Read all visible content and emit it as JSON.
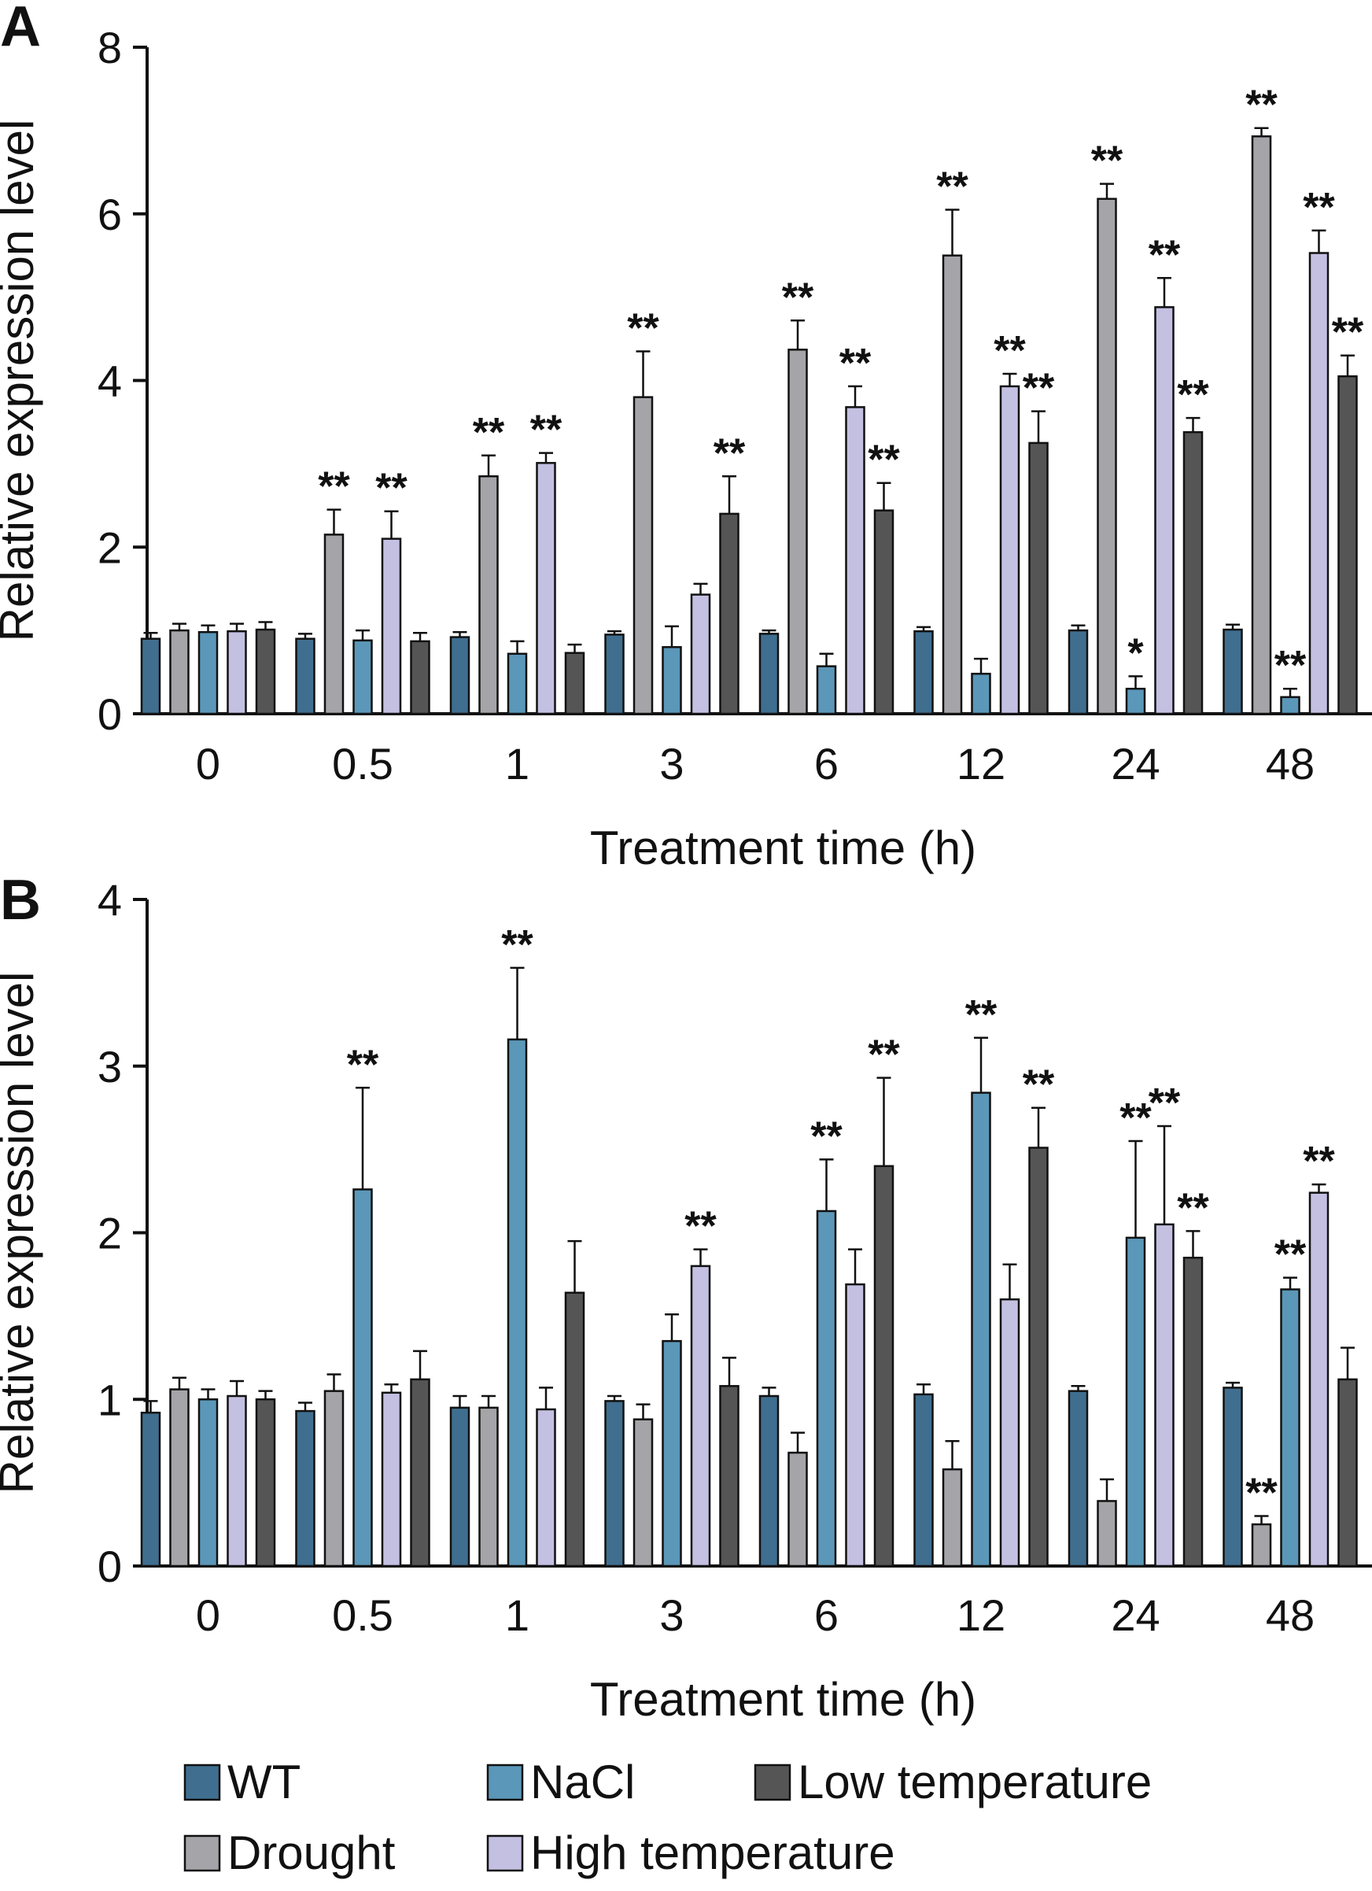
{
  "chart_data": [
    {
      "panel": "A",
      "type": "bar",
      "xlabel": "Treatment time (h)",
      "ylabel": "Relative expression level",
      "ylim": [
        0,
        8
      ],
      "yticks": [
        "0",
        "2",
        "4",
        "6",
        "8"
      ],
      "categories": [
        "0",
        "0.5",
        "1",
        "3",
        "6",
        "12",
        "24",
        "48"
      ],
      "series": [
        {
          "name": "WT",
          "values": [
            0.9,
            0.9,
            0.92,
            0.95,
            0.96,
            0.99,
            1.0,
            1.01
          ],
          "errors": [
            0.07,
            0.06,
            0.06,
            0.04,
            0.04,
            0.05,
            0.06,
            0.06
          ],
          "sig": [
            "",
            "",
            "",
            "",
            "",
            "",
            "",
            ""
          ]
        },
        {
          "name": "Drought",
          "values": [
            1.0,
            2.15,
            2.85,
            3.8,
            4.37,
            5.5,
            6.18,
            6.93
          ],
          "errors": [
            0.08,
            0.3,
            0.25,
            0.55,
            0.35,
            0.55,
            0.18,
            0.1
          ],
          "sig": [
            "",
            "**",
            "**",
            "**",
            "**",
            "**",
            "**",
            "**"
          ]
        },
        {
          "name": "NaCl",
          "values": [
            0.98,
            0.88,
            0.72,
            0.8,
            0.57,
            0.48,
            0.3,
            0.2
          ],
          "errors": [
            0.08,
            0.12,
            0.15,
            0.25,
            0.15,
            0.18,
            0.15,
            0.1
          ],
          "sig": [
            "",
            "",
            "",
            "",
            "",
            "",
            "*",
            "**"
          ]
        },
        {
          "name": "High temperature",
          "values": [
            0.99,
            2.1,
            3.01,
            1.43,
            3.68,
            3.93,
            4.88,
            5.53
          ],
          "errors": [
            0.09,
            0.33,
            0.12,
            0.13,
            0.25,
            0.15,
            0.35,
            0.27
          ],
          "sig": [
            "",
            "**",
            "**",
            "",
            "**",
            "**",
            "**",
            "**"
          ]
        },
        {
          "name": "Low temperature",
          "values": [
            1.01,
            0.87,
            0.73,
            2.4,
            2.44,
            3.25,
            3.38,
            4.05
          ],
          "errors": [
            0.09,
            0.1,
            0.1,
            0.45,
            0.33,
            0.38,
            0.17,
            0.25
          ],
          "sig": [
            "",
            "",
            "",
            "**",
            "**",
            "**",
            "**",
            "**"
          ]
        }
      ]
    },
    {
      "panel": "B",
      "type": "bar",
      "xlabel": "Treatment time (h)",
      "ylabel": "Relative expression level",
      "ylim": [
        0,
        4
      ],
      "yticks": [
        "0",
        "1",
        "2",
        "3",
        "4"
      ],
      "categories": [
        "0",
        "0.5",
        "1",
        "3",
        "6",
        "12",
        "24",
        "48"
      ],
      "series": [
        {
          "name": "WT",
          "values": [
            0.92,
            0.93,
            0.95,
            0.99,
            1.02,
            1.03,
            1.05,
            1.07
          ],
          "errors": [
            0.07,
            0.05,
            0.07,
            0.03,
            0.05,
            0.06,
            0.03,
            0.03
          ],
          "sig": [
            "",
            "",
            "",
            "",
            "",
            "",
            "",
            ""
          ]
        },
        {
          "name": "Drought",
          "values": [
            1.06,
            1.05,
            0.95,
            0.88,
            0.68,
            0.58,
            0.39,
            0.25
          ],
          "errors": [
            0.07,
            0.1,
            0.07,
            0.09,
            0.12,
            0.17,
            0.13,
            0.05
          ],
          "sig": [
            "",
            "",
            "",
            "",
            "",
            "",
            "",
            "**"
          ]
        },
        {
          "name": "NaCl",
          "values": [
            1.0,
            2.26,
            3.16,
            1.35,
            2.13,
            2.84,
            1.97,
            1.66
          ],
          "errors": [
            0.06,
            0.61,
            0.43,
            0.16,
            0.31,
            0.33,
            0.58,
            0.07
          ],
          "sig": [
            "",
            "**",
            "**",
            "",
            "**",
            "**",
            "**",
            "**"
          ]
        },
        {
          "name": "High temperature",
          "values": [
            1.02,
            1.04,
            0.94,
            1.8,
            1.69,
            1.6,
            2.05,
            2.24
          ],
          "errors": [
            0.09,
            0.05,
            0.13,
            0.1,
            0.21,
            0.21,
            0.59,
            0.05
          ],
          "sig": [
            "",
            "",
            "",
            "**",
            "",
            "",
            "**",
            "**"
          ]
        },
        {
          "name": "Low temperature",
          "values": [
            1.0,
            1.12,
            1.64,
            1.08,
            2.4,
            2.51,
            1.85,
            1.12
          ],
          "errors": [
            0.05,
            0.17,
            0.31,
            0.17,
            0.53,
            0.24,
            0.16,
            0.19
          ],
          "sig": [
            "",
            "",
            "",
            "",
            "**",
            "**",
            "**",
            ""
          ]
        }
      ]
    }
  ],
  "series_colors": {
    "WT": "#3f6e8f",
    "Drought": "#a5a4a8",
    "NaCl": "#5b97b8",
    "High temperature": "#c3c0e2",
    "Low temperature": "#555556"
  },
  "legend": {
    "rows": [
      [
        "WT",
        "NaCl",
        "Low temperature"
      ],
      [
        "Drought",
        "High temperature"
      ]
    ]
  }
}
